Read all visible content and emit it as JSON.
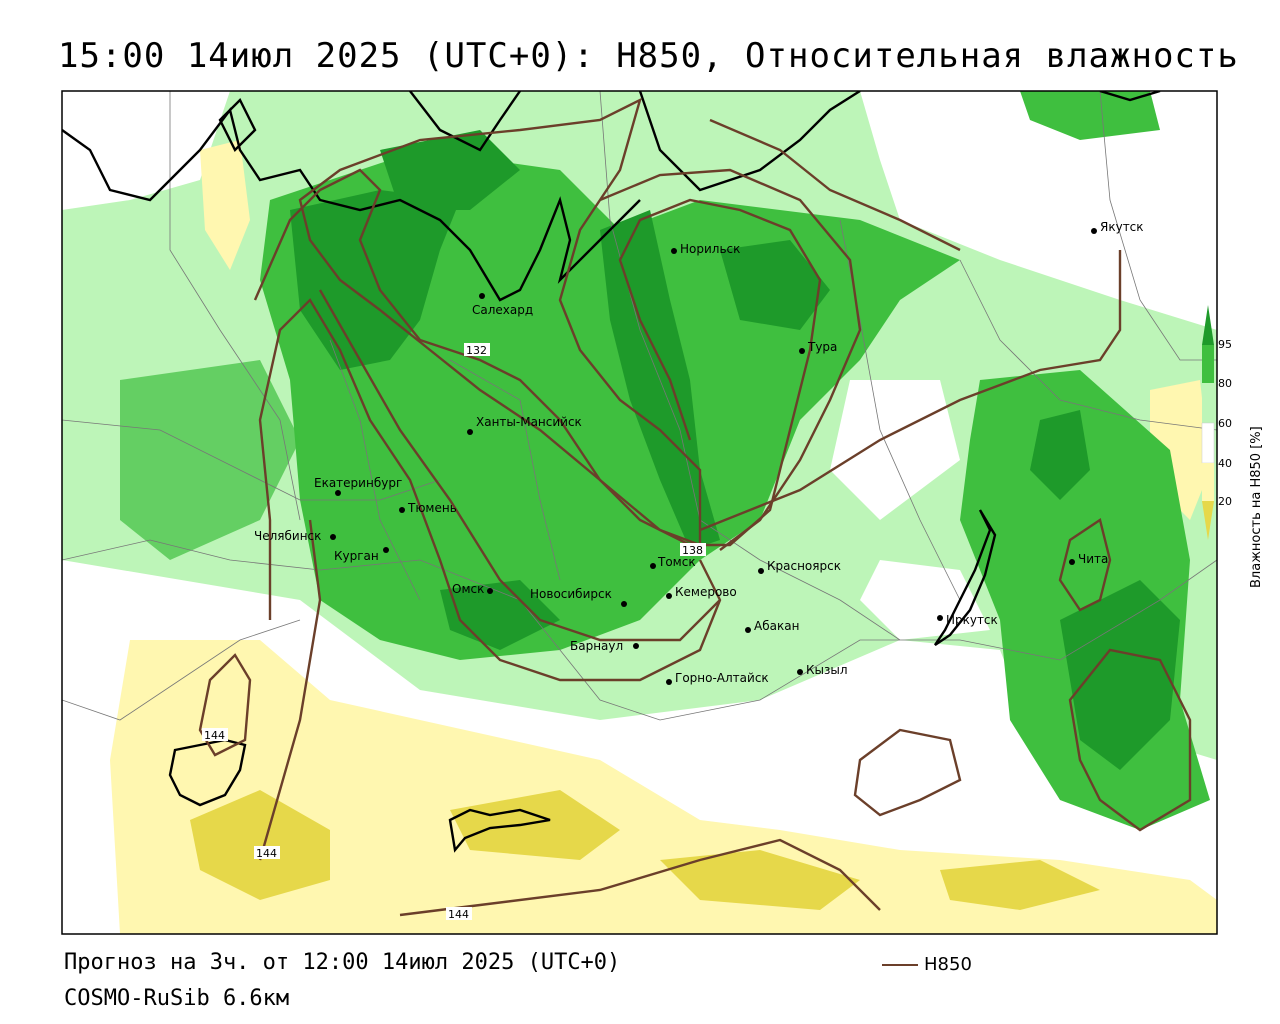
{
  "title": "15:00 14июл 2025 (UTC+0): H850, Относительная влажность",
  "footer": {
    "forecast": "Прогноз на 3ч. от 12:00 14июл 2025 (UTC+0)",
    "model": "COSMO-RuSib 6.6км"
  },
  "legend": {
    "h850_label": "H850"
  },
  "colorbar": {
    "title": "Влажность на H850 [%]",
    "ticks": [
      "95",
      "80",
      "60",
      "40",
      "20"
    ]
  },
  "colors": {
    "h850_line": "#6b3f2a",
    "humid_dark": "#1e9a2a",
    "humid_mid": "#3fbf3f",
    "humid_light": "#bdf5b8",
    "dry_light": "#fff7b0",
    "dry_mid": "#e6d84a",
    "coast": "#000000",
    "border": "#777777"
  },
  "contour_labels": [
    "132",
    "138",
    "144",
    "144",
    "144"
  ],
  "cities": [
    {
      "name": "Салехард"
    },
    {
      "name": "Норильск"
    },
    {
      "name": "Тура"
    },
    {
      "name": "Якутск"
    },
    {
      "name": "Ханты-Мансийск"
    },
    {
      "name": "Екатеринбург"
    },
    {
      "name": "Тюмень"
    },
    {
      "name": "Челябинск"
    },
    {
      "name": "Курган"
    },
    {
      "name": "Омск"
    },
    {
      "name": "Новосибирск"
    },
    {
      "name": "Томск"
    },
    {
      "name": "Кемерово"
    },
    {
      "name": "Красноярск"
    },
    {
      "name": "Барнаул"
    },
    {
      "name": "Абакан"
    },
    {
      "name": "Горно-Алтайск"
    },
    {
      "name": "Кызыл"
    },
    {
      "name": "Иркутск"
    },
    {
      "name": "Чита"
    }
  ]
}
